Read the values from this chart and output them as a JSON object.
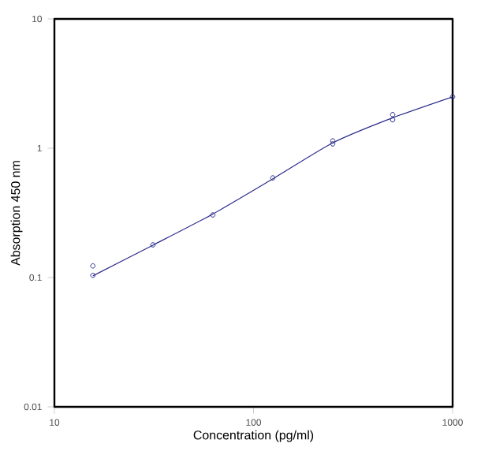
{
  "chart_data": {
    "type": "scatter",
    "xlabel": "Concentration (pg/ml)",
    "ylabel": "Absorption 450 nm",
    "log": "xy",
    "xlim": [
      10,
      1000
    ],
    "ylim": [
      0.01,
      10
    ],
    "xticks": [
      10,
      100,
      1000
    ],
    "yticks": [
      0.01,
      0.1,
      1,
      10
    ],
    "grid": false,
    "series": [
      {
        "marker": "circle",
        "color": "#2b2b8c",
        "x": [
          15.6,
          15.6,
          31.25,
          62.5,
          125,
          250,
          250,
          500,
          500,
          1000
        ],
        "values": [
          0.123,
          0.104,
          0.179,
          0.305,
          0.59,
          1.14,
          1.08,
          1.82,
          1.66,
          2.5
        ]
      },
      {
        "type": "line",
        "marker": "none",
        "color": "#2b2b8c",
        "x": [
          15.6,
          31.25,
          62.5,
          125,
          250,
          500,
          1000
        ],
        "values": [
          0.103,
          0.178,
          0.31,
          0.58,
          1.1,
          1.72,
          2.5
        ]
      }
    ]
  }
}
